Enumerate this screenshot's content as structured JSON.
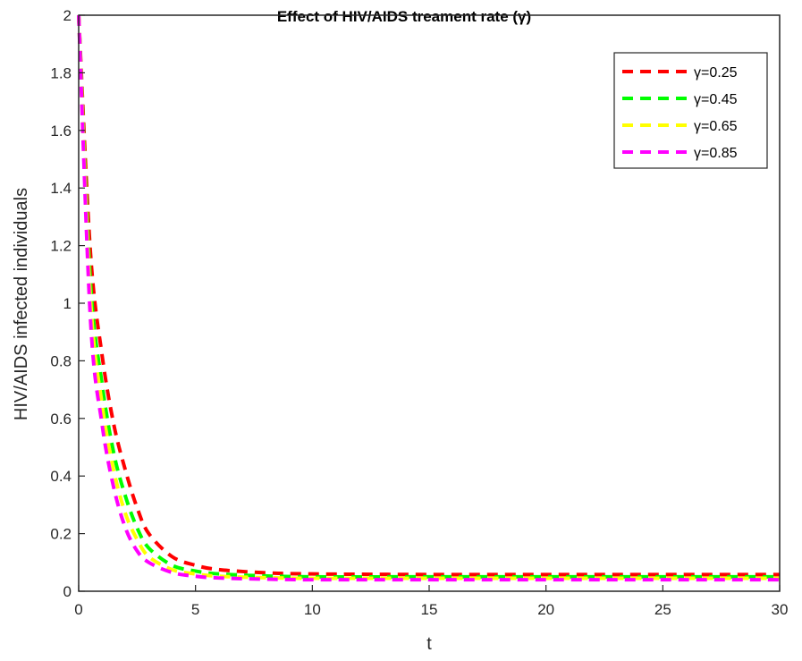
{
  "chart_data": {
    "type": "line",
    "title": "Effect of HIV/AIDS treament rate (γ)",
    "xlabel": "t",
    "ylabel": "HIV/AIDS infected individuals",
    "xlim": [
      0,
      30
    ],
    "ylim": [
      0,
      2
    ],
    "xticks": [
      "0",
      "5",
      "10",
      "15",
      "20",
      "25",
      "30"
    ],
    "yticks": [
      "0",
      "0.2",
      "0.4",
      "0.6",
      "0.8",
      "1",
      "1.2",
      "1.4",
      "1.6",
      "1.8",
      "2"
    ],
    "grid": false,
    "legend_position": "top-right",
    "line_style": "dashed",
    "x": [
      0,
      0.5,
      1,
      1.5,
      2,
      2.5,
      3,
      4,
      5,
      6,
      8,
      10,
      15,
      20,
      25,
      30
    ],
    "series": [
      {
        "name": "γ=0.25",
        "color": "#ff0000",
        "values": [
          2.0,
          1.18,
          0.82,
          0.58,
          0.42,
          0.29,
          0.2,
          0.12,
          0.09,
          0.075,
          0.064,
          0.06,
          0.058,
          0.058,
          0.058,
          0.058
        ]
      },
      {
        "name": "γ=0.45",
        "color": "#00ff00",
        "values": [
          2.0,
          1.08,
          0.72,
          0.48,
          0.33,
          0.22,
          0.15,
          0.09,
          0.07,
          0.06,
          0.053,
          0.05,
          0.05,
          0.05,
          0.05,
          0.05
        ]
      },
      {
        "name": "γ=0.65",
        "color": "#ffff00",
        "values": [
          2.0,
          1.02,
          0.65,
          0.42,
          0.27,
          0.18,
          0.12,
          0.075,
          0.06,
          0.052,
          0.047,
          0.045,
          0.045,
          0.045,
          0.045,
          0.045
        ]
      },
      {
        "name": "γ=0.85",
        "color": "#ff00ff",
        "values": [
          2.0,
          0.95,
          0.58,
          0.36,
          0.22,
          0.14,
          0.1,
          0.065,
          0.052,
          0.046,
          0.042,
          0.04,
          0.04,
          0.04,
          0.04,
          0.04
        ]
      }
    ]
  }
}
